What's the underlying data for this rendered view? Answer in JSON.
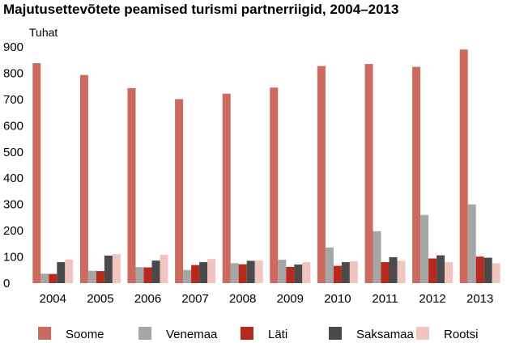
{
  "chart_data": {
    "type": "bar",
    "title": "Majutusettevõtete peamised turismi partnerriigid, 2004–2013",
    "ylabel": "Tuhat",
    "xlabel": "",
    "ylim": [
      0,
      900
    ],
    "yticks": [
      0,
      100,
      200,
      300,
      400,
      500,
      600,
      700,
      800,
      900
    ],
    "grid": false,
    "legend_position": "bottom",
    "categories": [
      "2004",
      "2005",
      "2006",
      "2007",
      "2008",
      "2009",
      "2010",
      "2011",
      "2012",
      "2013"
    ],
    "series": [
      {
        "name": "Soome",
        "color": "#cd6a5e",
        "values": [
          838,
          793,
          743,
          701,
          722,
          745,
          827,
          835,
          824,
          890
        ]
      },
      {
        "name": "Venemaa",
        "color": "#a6a6a6",
        "values": [
          36,
          47,
          61,
          50,
          76,
          89,
          136,
          198,
          260,
          300
        ]
      },
      {
        "name": "Läti",
        "color": "#b52a1d",
        "values": [
          35,
          46,
          60,
          69,
          72,
          62,
          66,
          80,
          94,
          101
        ]
      },
      {
        "name": "Saksamaa",
        "color": "#4a4a4a",
        "values": [
          80,
          105,
          86,
          80,
          85,
          71,
          80,
          99,
          106,
          97
        ]
      },
      {
        "name": "Rootsi",
        "color": "#f0c4bf",
        "values": [
          90,
          110,
          108,
          92,
          86,
          80,
          83,
          85,
          80,
          75
        ]
      }
    ]
  }
}
